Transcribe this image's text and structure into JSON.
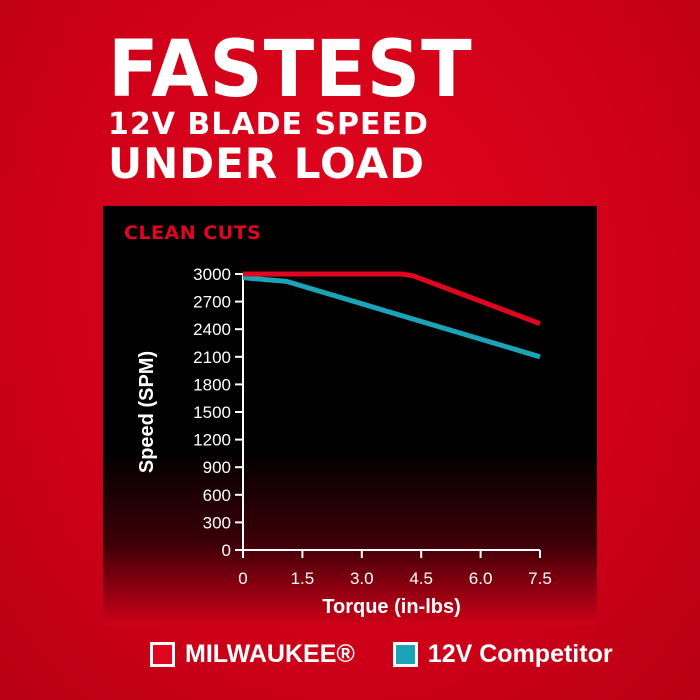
{
  "headline": {
    "line1": "FASTEST",
    "line2": "12V BLADE SPEED",
    "line3": "UNDER LOAD"
  },
  "chart_data": {
    "type": "line",
    "title": "CLEAN CUTS",
    "xlabel": "Torque (in-lbs)",
    "ylabel": "Speed (SPM)",
    "xlim": [
      0,
      7.5
    ],
    "ylim": [
      0,
      3000
    ],
    "xticks": [
      "0",
      "1.5",
      "3.0",
      "4.5",
      "6.0",
      "7.5"
    ],
    "yticks": [
      "0",
      "300",
      "600",
      "900",
      "1200",
      "1500",
      "1800",
      "2100",
      "2400",
      "2700",
      "3000"
    ],
    "grid": false,
    "legend_position": "bottom",
    "series": [
      {
        "name": "MILWAUKEE®",
        "color": "#e0061f",
        "x": [
          0,
          4.0,
          4.3,
          7.5
        ],
        "y": [
          3000,
          3000,
          2980,
          2460
        ]
      },
      {
        "name": "12V Competitor",
        "color": "#1ba3b8",
        "x": [
          0,
          1.1,
          7.5
        ],
        "y": [
          2960,
          2920,
          2100
        ]
      }
    ]
  }
}
